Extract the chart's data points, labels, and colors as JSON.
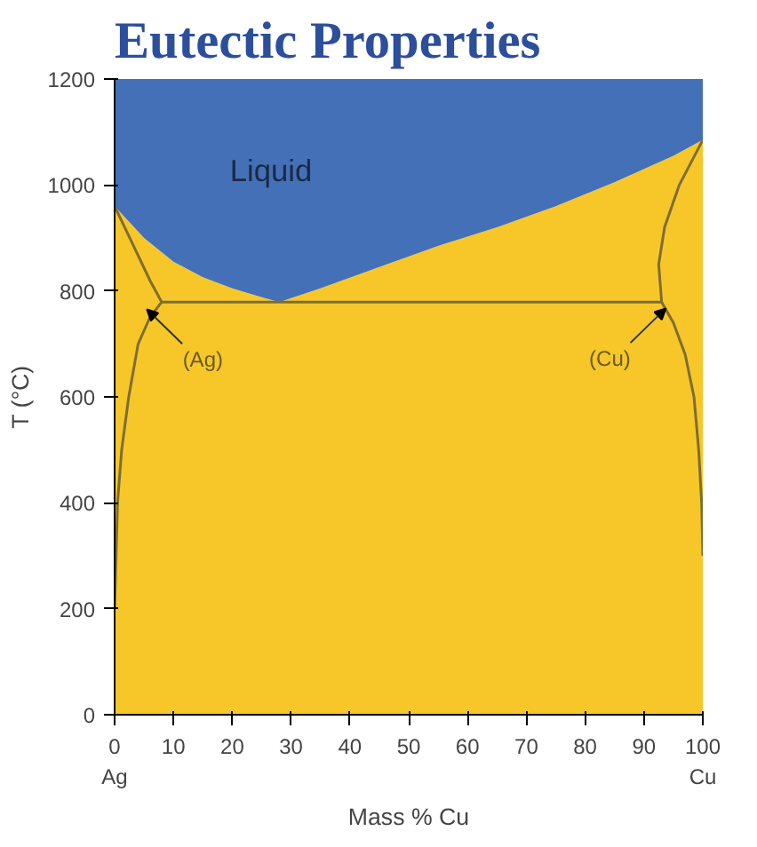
{
  "chart_data": {
    "type": "area",
    "title": "Eutectic Properties",
    "xlabel": "Mass % Cu",
    "ylabel": "T (°C)",
    "x": [
      0,
      5,
      10,
      15,
      20,
      25,
      28,
      35,
      45,
      55,
      65,
      75,
      85,
      95,
      100
    ],
    "stacked": true,
    "series": [
      {
        "color": "#f7c72a",
        "values": [
          960,
          900,
          855,
          826,
          805,
          788,
          779,
          805,
          845,
          885,
          920,
          960,
          1005,
          1055,
          1085
        ]
      },
      {
        "color": "#4470b8",
        "values": [
          240,
          300,
          345,
          374,
          395,
          412,
          421,
          395,
          355,
          315,
          280,
          240,
          195,
          145,
          115
        ]
      },
      {
        "type": "line",
        "color": "#7d6e30",
        "x": [
          0,
          3,
          6,
          8,
          6,
          4,
          2.4,
          1.2,
          0.5,
          0
        ],
        "values": [
          960,
          890,
          820,
          779,
          750,
          700,
          600,
          500,
          400,
          200
        ]
      },
      {
        "type": "line",
        "color": "#7d6e30",
        "x": [
          100,
          96,
          93.5,
          92.5,
          93,
          95,
          97,
          98.5,
          99.3,
          99.8,
          100
        ],
        "values": [
          1085,
          1000,
          920,
          850,
          779,
          740,
          680,
          600,
          500,
          400,
          300
        ]
      },
      {
        "type": "line",
        "color": "#7d6e30",
        "x": [
          8,
          93
        ],
        "values": [
          779,
          779
        ]
      }
    ],
    "xlim": [
      0,
      100
    ],
    "ylim": [
      0,
      1200
    ],
    "xticks": [
      {
        "value": 0,
        "label": "0\nAg"
      },
      10,
      20,
      30,
      40,
      50,
      60,
      70,
      80,
      90,
      {
        "value": 100,
        "label": "100\nCu"
      }
    ],
    "yticks": [
      0,
      200,
      400,
      600,
      800,
      1000,
      1200
    ],
    "annotations": [
      "Liquid",
      {
        "text": "(Ag)",
        "x": 5.5,
        "y": 765
      },
      {
        "text": "(Cu)",
        "x": 93.7,
        "y": 767
      }
    ],
    "grid": false
  }
}
